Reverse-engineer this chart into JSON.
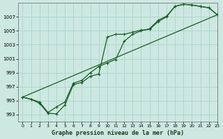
{
  "title": "Graphe pression niveau de la mer (hPa)",
  "background_color": "#cce8e0",
  "grid_color": "#aad4cc",
  "line_color": "#1a5c28",
  "ylim": [
    992,
    1009
  ],
  "xlim": [
    -0.5,
    23
  ],
  "yticks": [
    993,
    995,
    997,
    999,
    1001,
    1003,
    1005,
    1007
  ],
  "xticks": [
    0,
    1,
    2,
    3,
    4,
    5,
    6,
    7,
    8,
    9,
    10,
    11,
    12,
    13,
    14,
    15,
    16,
    17,
    18,
    19,
    20,
    21,
    22,
    23
  ],
  "line1_x": [
    0,
    1,
    2,
    3,
    4,
    5,
    6,
    7,
    8,
    9,
    10,
    11,
    12,
    13,
    14,
    15,
    16,
    17,
    18,
    19,
    20,
    21,
    22,
    23
  ],
  "line1_y": [
    995.5,
    995.2,
    994.6,
    993.2,
    993.1,
    994.4,
    997.3,
    997.6,
    998.5,
    998.8,
    1004.1,
    1004.5,
    1004.5,
    1004.8,
    1005.1,
    1005.2,
    1006.3,
    1007.0,
    1008.5,
    1008.8,
    1008.7,
    1008.5,
    1008.3,
    1007.3
  ],
  "line2_x": [
    0,
    1,
    2,
    3,
    4,
    5,
    6,
    7,
    8,
    9,
    10,
    11,
    12,
    13,
    14,
    15,
    16,
    17,
    18,
    19,
    20,
    21,
    22,
    23
  ],
  "line2_y": [
    995.5,
    995.2,
    994.8,
    993.3,
    994.1,
    994.8,
    997.5,
    997.9,
    999.0,
    999.9,
    1000.4,
    1000.9,
    1003.5,
    1004.5,
    1005.0,
    1005.3,
    1006.5,
    1007.1,
    1008.5,
    1008.8,
    1008.7,
    1008.5,
    1008.3,
    1007.3
  ],
  "line3_x": [
    0,
    23
  ],
  "line3_y": [
    995.5,
    1007.3
  ]
}
